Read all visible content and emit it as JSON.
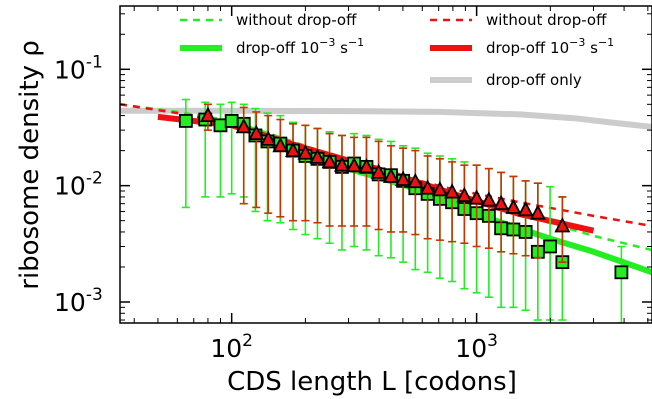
{
  "chart_data": {
    "type": "scatter",
    "title": "",
    "xlabel": "CDS length L [codons]",
    "ylabel": "ribosome density ρ",
    "xscale": "log",
    "yscale": "log",
    "xlim": [
      35,
      5200
    ],
    "ylim": [
      0.00066,
      0.35
    ],
    "x_ticks": [
      {
        "value": 100,
        "base": "10",
        "exp": "2"
      },
      {
        "value": 1000,
        "base": "10",
        "exp": "3"
      }
    ],
    "y_ticks": [
      {
        "value": 0.1,
        "base": "10",
        "exp": "-1"
      },
      {
        "value": 0.01,
        "base": "10",
        "exp": "-2"
      },
      {
        "value": 0.001,
        "base": "10",
        "exp": "-3"
      }
    ],
    "grid": false,
    "legend_position": "top",
    "legend": [
      {
        "label": "without drop-off",
        "color": "#22ee22",
        "style": "dashed"
      },
      {
        "label": "drop-off 10",
        "sup": "−3",
        "unit": " s",
        "unit_sup": "−1",
        "color": "#22ee22",
        "style": "solid"
      },
      {
        "label": "without drop-off",
        "color": "#ee1111",
        "style": "dashed"
      },
      {
        "label": "drop-off 10",
        "sup": "−3",
        "unit": " s",
        "unit_sup": "−1",
        "color": "#ee1111",
        "style": "solid"
      },
      {
        "label": "drop-off only",
        "color": "#cccccc",
        "style": "solid"
      }
    ],
    "lines": [
      {
        "color": "#cccccc",
        "style": "solid",
        "width": 6,
        "x": [
          35,
          100,
          300,
          700,
          1500,
          2500,
          3500,
          5200
        ],
        "y": [
          0.044,
          0.044,
          0.0437,
          0.043,
          0.041,
          0.038,
          0.035,
          0.032
        ]
      },
      {
        "color": "#22ee22",
        "style": "dashed",
        "width": 2.5,
        "x": [
          35,
          60,
          100,
          200,
          400,
          800,
          1500,
          3000,
          5200
        ],
        "y": [
          0.05,
          0.043,
          0.036,
          0.022,
          0.0135,
          0.0085,
          0.0057,
          0.0037,
          0.0028
        ]
      },
      {
        "color": "#ee1111",
        "style": "dashed",
        "width": 2.5,
        "x": [
          35,
          60,
          100,
          200,
          400,
          800,
          1500,
          3000,
          5200
        ],
        "y": [
          0.05,
          0.042,
          0.034,
          0.021,
          0.0135,
          0.0093,
          0.0072,
          0.0055,
          0.0045
        ]
      },
      {
        "color": "#ee1111",
        "style": "solid",
        "width": 6,
        "x": [
          50,
          100,
          200,
          400,
          800,
          1500,
          3000
        ],
        "y": [
          0.039,
          0.033,
          0.021,
          0.0138,
          0.0085,
          0.0057,
          0.0041
        ]
      },
      {
        "color": "#22ee22",
        "style": "solid",
        "width": 6,
        "x": [
          300,
          500,
          800,
          1200,
          2000,
          3000,
          5200
        ],
        "y": [
          0.014,
          0.0102,
          0.0072,
          0.005,
          0.0035,
          0.0027,
          0.0018
        ]
      }
    ],
    "series": [
      {
        "marker": "square",
        "color": "#22ee22",
        "errcolor": "#22ee22",
        "x": [
          65,
          78,
          90,
          100,
          112,
          125,
          140,
          158,
          178,
          200,
          224,
          251,
          282,
          316,
          355,
          398,
          447,
          501,
          562,
          631,
          708,
          794,
          891,
          1000,
          1122,
          1259,
          1413,
          1585,
          1778,
          1995,
          2239,
          3900
        ],
        "y": [
          0.036,
          0.037,
          0.033,
          0.036,
          0.034,
          0.027,
          0.024,
          0.023,
          0.02,
          0.018,
          0.017,
          0.016,
          0.0145,
          0.0155,
          0.0145,
          0.0125,
          0.0123,
          0.011,
          0.0095,
          0.0085,
          0.0077,
          0.0072,
          0.0063,
          0.0058,
          0.0055,
          0.0043,
          0.0042,
          0.004,
          0.0027,
          0.003,
          0.0022,
          0.0018
        ],
        "ylo": [
          0.0065,
          0.008,
          0.008,
          0.0085,
          0.008,
          0.006,
          0.005,
          0.0048,
          0.0042,
          0.0038,
          0.0035,
          0.0032,
          0.0028,
          0.003,
          0.0028,
          0.0025,
          0.0024,
          0.0022,
          0.0019,
          0.0018,
          0.0016,
          0.0015,
          0.0013,
          0.0012,
          0.0011,
          0.0009,
          0.0009,
          0.00085,
          0.0007,
          0.0007,
          0.0007,
          0.00066
        ],
        "yhi": [
          0.055,
          0.052,
          0.05,
          0.052,
          0.05,
          0.046,
          0.042,
          0.04,
          0.035,
          0.033,
          0.031,
          0.029,
          0.027,
          0.028,
          0.027,
          0.025,
          0.024,
          0.022,
          0.021,
          0.019,
          0.018,
          0.017,
          0.016,
          0.015,
          0.014,
          0.013,
          0.012,
          0.011,
          0.0105,
          0.0098,
          0.008,
          0.003
        ]
      },
      {
        "marker": "triangle",
        "color": "#ee1111",
        "errcolor": "#cc3300",
        "x": [
          80,
          112,
          126,
          141,
          158,
          178,
          200,
          224,
          251,
          282,
          316,
          355,
          398,
          447,
          501,
          562,
          631,
          708,
          794,
          891,
          1000,
          1122,
          1259,
          1413,
          1585,
          1778,
          2239
        ],
        "y": [
          0.04,
          0.032,
          0.028,
          0.025,
          0.022,
          0.02,
          0.019,
          0.0175,
          0.016,
          0.015,
          0.0148,
          0.0145,
          0.013,
          0.012,
          0.0113,
          0.0108,
          0.0095,
          0.0092,
          0.0088,
          0.0082,
          0.0078,
          0.0075,
          0.007,
          0.0065,
          0.0062,
          0.0058,
          0.0045
        ],
        "ylo": [
          0.03,
          0.007,
          0.0065,
          0.0058,
          0.0054,
          0.005,
          0.005,
          0.0048,
          0.0045,
          0.0045,
          0.0045,
          0.0045,
          0.0042,
          0.004,
          0.004,
          0.0038,
          0.0035,
          0.0034,
          0.0033,
          0.0032,
          0.003,
          0.0029,
          0.0027,
          0.0026,
          0.0025,
          0.0024,
          0.0022
        ],
        "yhi": [
          0.05,
          0.047,
          0.043,
          0.04,
          0.037,
          0.034,
          0.033,
          0.031,
          0.028,
          0.027,
          0.026,
          0.026,
          0.024,
          0.022,
          0.021,
          0.02,
          0.018,
          0.017,
          0.016,
          0.015,
          0.015,
          0.014,
          0.013,
          0.012,
          0.011,
          0.0105,
          0.008
        ]
      }
    ]
  }
}
